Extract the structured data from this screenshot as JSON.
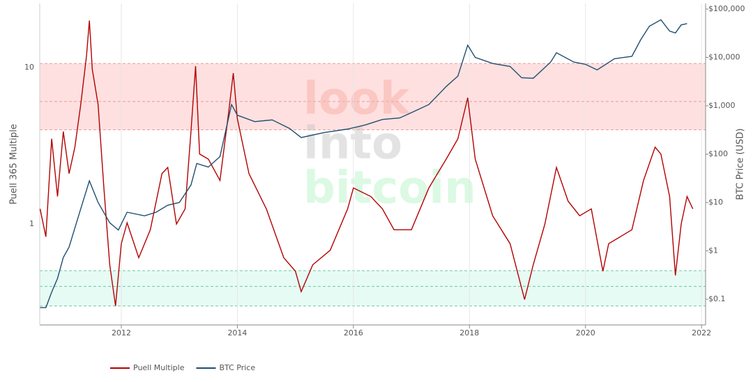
{
  "chart_data": {
    "type": "line",
    "y_axis_label": "Puell 365 Multiple",
    "y2_axis_label": "BTC Price (USD)",
    "watermark": [
      "look",
      "into",
      "bitcoin"
    ],
    "xlim": [
      2010.594,
      2022.07
    ],
    "xticks": [
      2012,
      2014,
      2016,
      2018,
      2020,
      2022
    ],
    "ylim": [
      0.227,
      25.6
    ],
    "yticks": [
      1,
      10
    ],
    "log_y": true,
    "y2lim": [
      0.0294,
      130300
    ],
    "log_y2": true,
    "y2ticks": [
      {
        "value": 0.1,
        "label": "$0.1"
      },
      {
        "value": 1,
        "label": "$1"
      },
      {
        "value": 10,
        "label": "$10"
      },
      {
        "value": 100,
        "label": "$100"
      },
      {
        "value": 1000,
        "label": "$1,000"
      },
      {
        "value": 10000,
        "label": "$10,000"
      },
      {
        "value": 100000,
        "label": "$100,000"
      }
    ],
    "grid": true,
    "legend": "bottom-left",
    "bands": [
      {
        "from": 4.0,
        "to": 10.6,
        "color": "#ffcccc",
        "lines": [
          4.0,
          6.06,
          10.6
        ]
      },
      {
        "from": 0.3,
        "to": 0.504,
        "color": "#d5f8ec",
        "lines": [
          0.3,
          0.4,
          0.504
        ]
      }
    ],
    "series": [
      {
        "name": "Puell Multiple",
        "color": "#b30000",
        "x": [
          2010.6,
          2010.7,
          2010.8,
          2010.9,
          2011.0,
          2011.1,
          2011.2,
          2011.3,
          2011.4,
          2011.45,
          2011.5,
          2011.6,
          2011.7,
          2011.8,
          2011.9,
          2012.0,
          2012.1,
          2012.3,
          2012.5,
          2012.7,
          2012.8,
          2012.95,
          2013.1,
          2013.2,
          2013.28,
          2013.35,
          2013.5,
          2013.7,
          2013.85,
          2013.93,
          2014.0,
          2014.2,
          2014.5,
          2014.8,
          2015.0,
          2015.1,
          2015.3,
          2015.6,
          2015.9,
          2016.0,
          2016.3,
          2016.5,
          2016.7,
          2017.0,
          2017.3,
          2017.6,
          2017.8,
          2017.97,
          2018.1,
          2018.4,
          2018.7,
          2018.95,
          2019.1,
          2019.3,
          2019.5,
          2019.7,
          2019.9,
          2020.1,
          2020.3,
          2020.4,
          2020.6,
          2020.8,
          2021.0,
          2021.2,
          2021.3,
          2021.45,
          2021.55,
          2021.65,
          2021.75,
          2021.85
        ],
        "values": [
          1.25,
          0.83,
          3.5,
          1.5,
          3.9,
          2.1,
          3.1,
          5.8,
          11.9,
          19.9,
          9.7,
          5.8,
          1.7,
          0.55,
          0.3,
          0.75,
          1.02,
          0.61,
          0.92,
          2.1,
          2.3,
          1.0,
          1.25,
          3.9,
          10.2,
          2.8,
          2.6,
          1.9,
          5.2,
          9.2,
          4.7,
          2.1,
          1.25,
          0.61,
          0.5,
          0.37,
          0.55,
          0.68,
          1.25,
          1.7,
          1.5,
          1.25,
          0.92,
          0.92,
          1.7,
          2.6,
          3.5,
          6.4,
          2.6,
          1.13,
          0.75,
          0.33,
          0.55,
          1.0,
          2.3,
          1.4,
          1.13,
          1.25,
          0.5,
          0.75,
          0.83,
          0.92,
          1.9,
          3.1,
          2.8,
          1.5,
          0.47,
          1.0,
          1.5,
          1.25
        ]
      },
      {
        "name": "BTC Price",
        "color": "#1f4e6e",
        "axis": "y2",
        "x": [
          2010.6,
          2010.7,
          2010.8,
          2010.9,
          2011.0,
          2011.1,
          2011.3,
          2011.45,
          2011.6,
          2011.8,
          2011.95,
          2012.1,
          2012.4,
          2012.6,
          2012.8,
          2013.0,
          2013.2,
          2013.3,
          2013.5,
          2013.7,
          2013.9,
          2014.0,
          2014.3,
          2014.6,
          2014.9,
          2015.1,
          2015.5,
          2015.9,
          2016.2,
          2016.5,
          2016.8,
          2017.0,
          2017.3,
          2017.6,
          2017.8,
          2017.97,
          2018.1,
          2018.4,
          2018.7,
          2018.9,
          2019.1,
          2019.4,
          2019.5,
          2019.8,
          2020.0,
          2020.2,
          2020.5,
          2020.8,
          2020.95,
          2021.1,
          2021.3,
          2021.45,
          2021.55,
          2021.65,
          2021.75
        ],
        "values": [
          0.067,
          0.067,
          0.14,
          0.27,
          0.73,
          1.2,
          7.4,
          28,
          10,
          3.8,
          2.7,
          6.3,
          5.3,
          6.3,
          8.8,
          10,
          23,
          64,
          54,
          89,
          1060,
          640,
          470,
          510,
          340,
          220,
          280,
          330,
          400,
          520,
          560,
          720,
          1060,
          2500,
          4100,
          17900,
          10000,
          7500,
          6500,
          3800,
          3700,
          8000,
          12500,
          8000,
          7200,
          5500,
          9400,
          10500,
          23000,
          44000,
          60000,
          35000,
          32000,
          47000,
          50000
        ]
      }
    ]
  }
}
